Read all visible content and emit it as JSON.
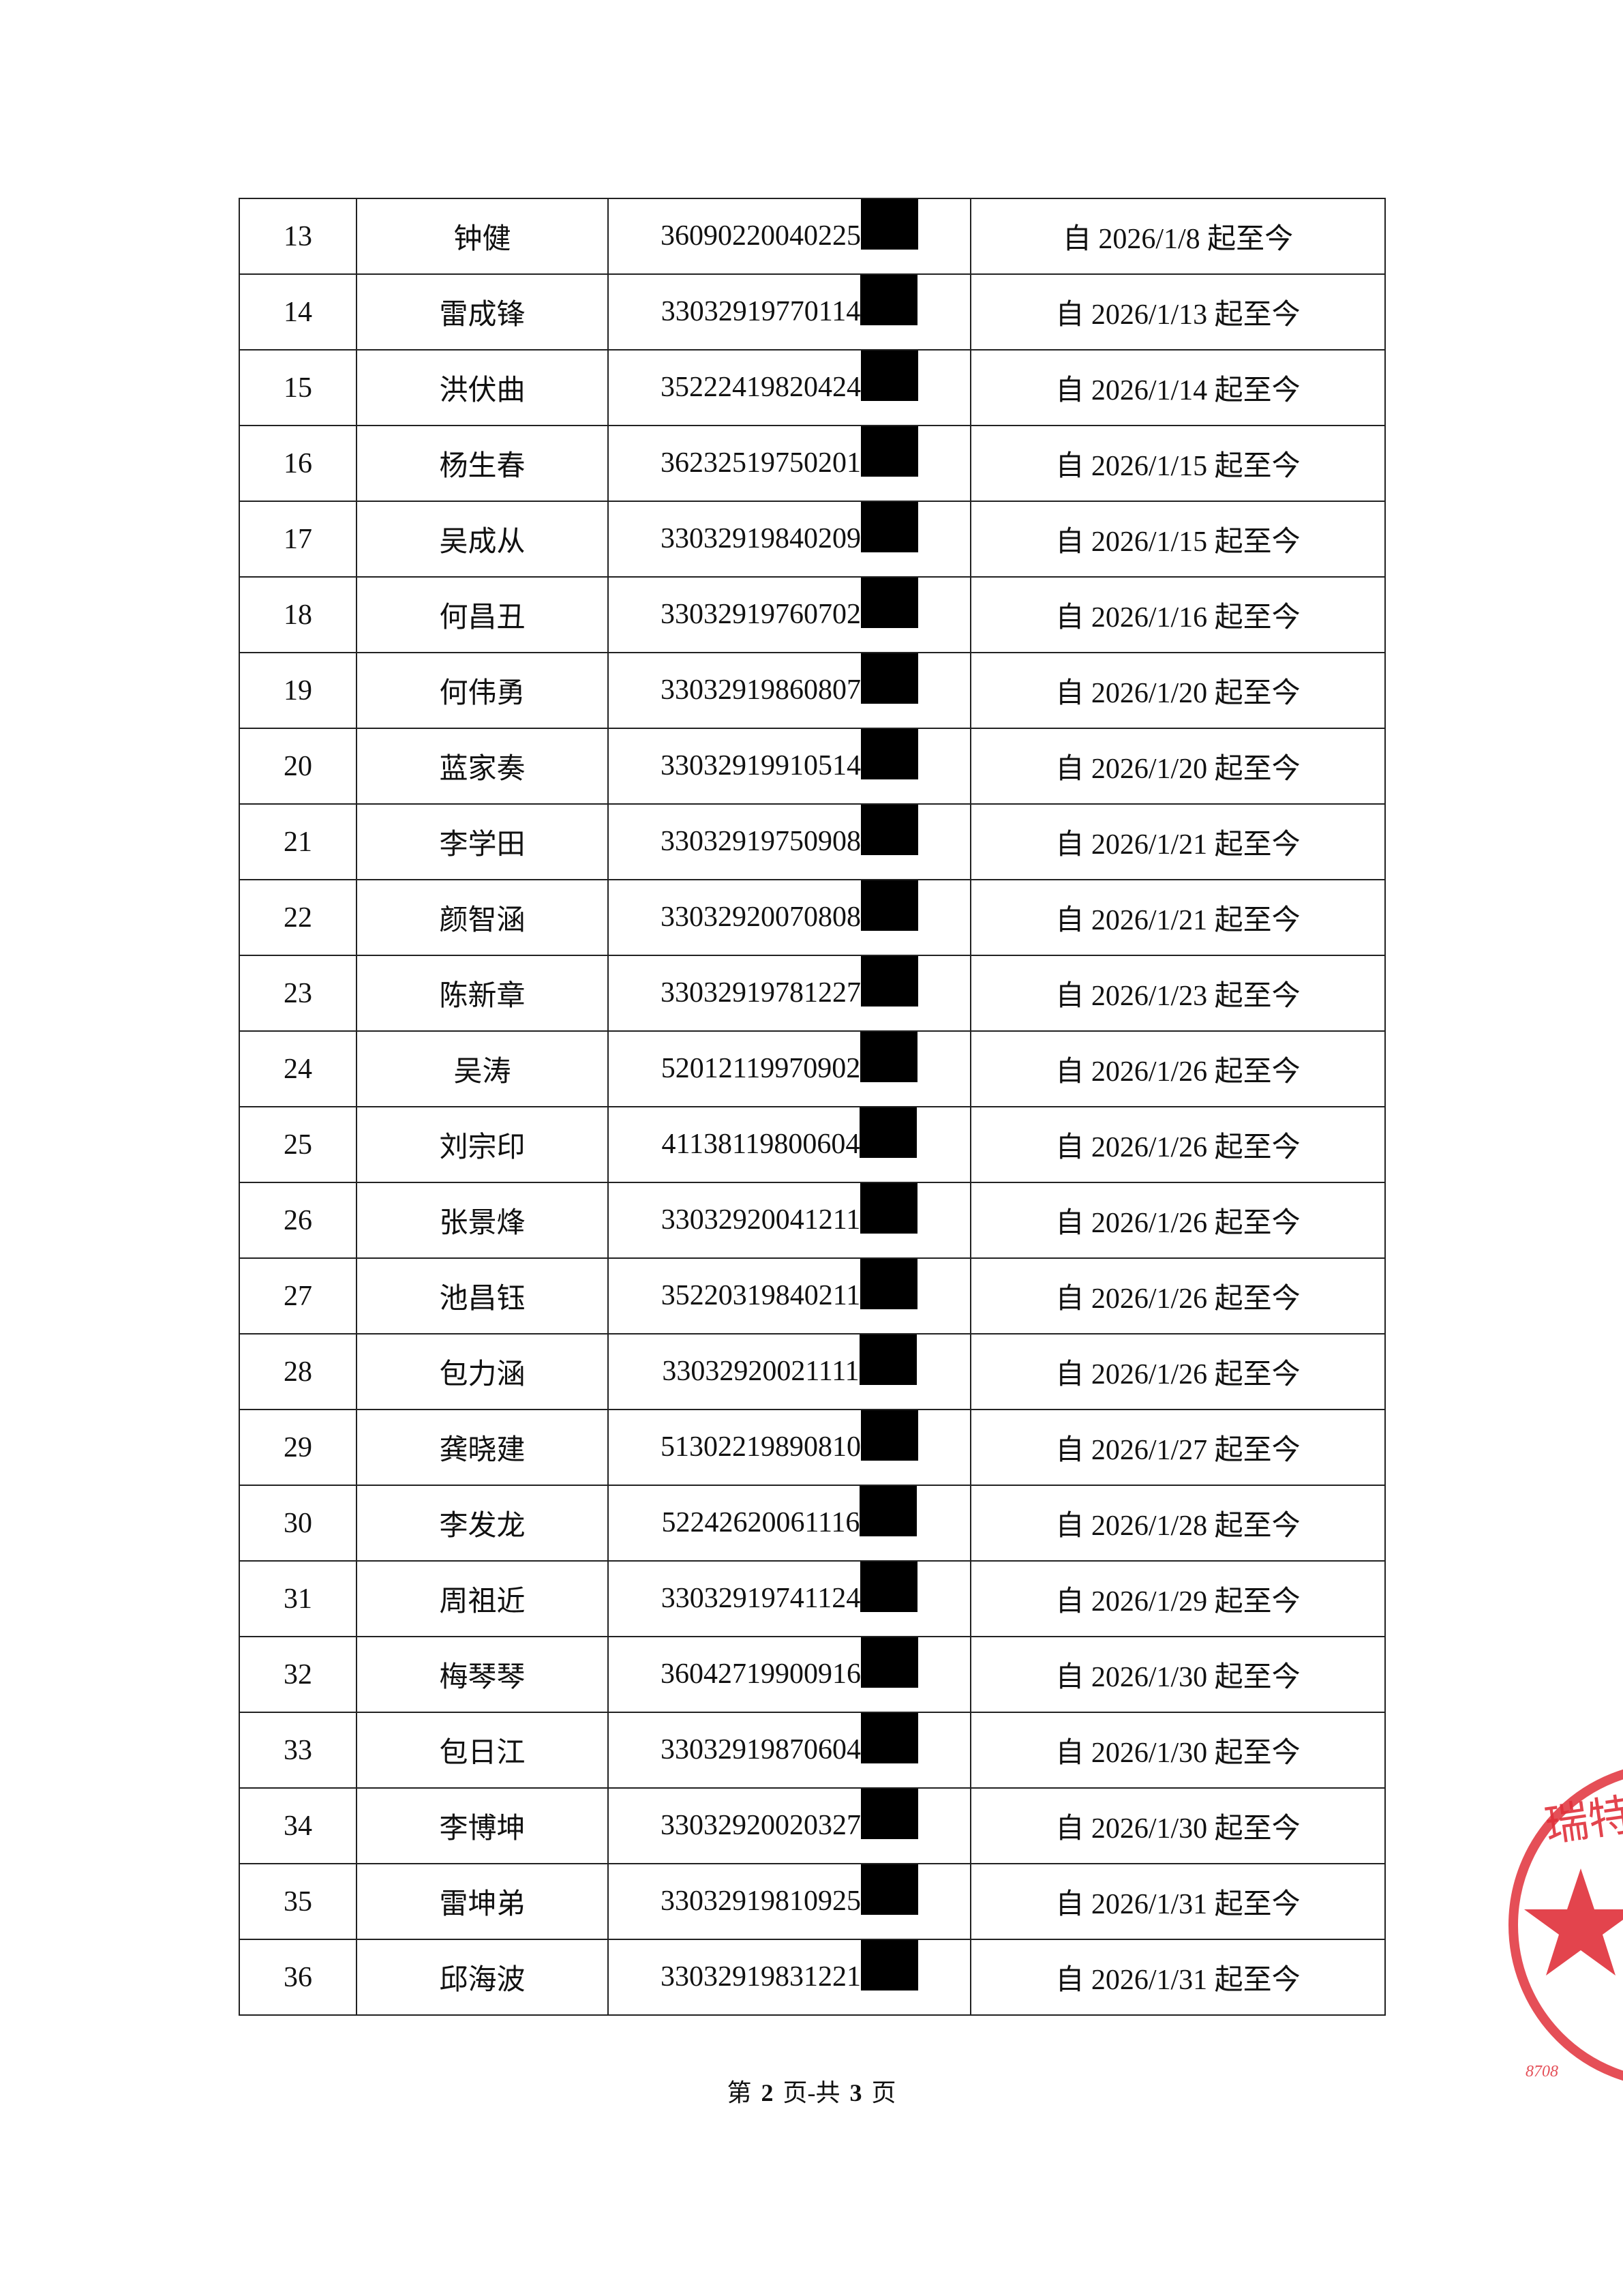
{
  "table": {
    "rows": [
      [
        "13",
        "钟健",
        "36090220040225",
        "自 2026/1/8 起至今"
      ],
      [
        "14",
        "雷成锋",
        "33032919770114",
        "自 2026/1/13 起至今"
      ],
      [
        "15",
        "洪伏曲",
        "35222419820424",
        "自 2026/1/14 起至今"
      ],
      [
        "16",
        "杨生春",
        "36232519750201",
        "自 2026/1/15 起至今"
      ],
      [
        "17",
        "吴成从",
        "33032919840209",
        "自 2026/1/15 起至今"
      ],
      [
        "18",
        "何昌丑",
        "33032919760702",
        "自 2026/1/16 起至今"
      ],
      [
        "19",
        "何伟勇",
        "33032919860807",
        "自 2026/1/20 起至今"
      ],
      [
        "20",
        "蓝家奏",
        "33032919910514",
        "自 2026/1/20 起至今"
      ],
      [
        "21",
        "李学田",
        "33032919750908",
        "自 2026/1/21 起至今"
      ],
      [
        "22",
        "颜智涵",
        "33032920070808",
        "自 2026/1/21 起至今"
      ],
      [
        "23",
        "陈新章",
        "33032919781227",
        "自 2026/1/23 起至今"
      ],
      [
        "24",
        "吴涛",
        "52012119970902",
        "自 2026/1/26 起至今"
      ],
      [
        "25",
        "刘宗印",
        "41138119800604",
        "自 2026/1/26 起至今"
      ],
      [
        "26",
        "张景烽",
        "33032920041211",
        "自 2026/1/26 起至今"
      ],
      [
        "27",
        "池昌钰",
        "35220319840211",
        "自 2026/1/26 起至今"
      ],
      [
        "28",
        "包力涵",
        "33032920021111",
        "自 2026/1/26 起至今"
      ],
      [
        "29",
        "龚晓建",
        "51302219890810",
        "自 2026/1/27 起至今"
      ],
      [
        "30",
        "李发龙",
        "52242620061116",
        "自 2026/1/28 起至今"
      ],
      [
        "31",
        "周祖近",
        "33032919741124",
        "自 2026/1/29 起至今"
      ],
      [
        "32",
        "梅琴琴",
        "36042719900916",
        "自 2026/1/30 起至今"
      ],
      [
        "33",
        "包日江",
        "33032919870604",
        "自 2026/1/30 起至今"
      ],
      [
        "34",
        "李博坤",
        "33032920020327",
        "自 2026/1/30 起至今"
      ],
      [
        "35",
        "雷坤弟",
        "33032919810925",
        "自 2026/1/31 起至今"
      ],
      [
        "36",
        "邱海波",
        "33032919831221",
        "自 2026/1/31 起至今"
      ]
    ]
  },
  "footer": {
    "prefix": "第",
    "page": "2",
    "middle": "页-共",
    "total": "3",
    "suffix": "页"
  },
  "stamp": {
    "text": "瑞特供",
    "code": "8708"
  }
}
